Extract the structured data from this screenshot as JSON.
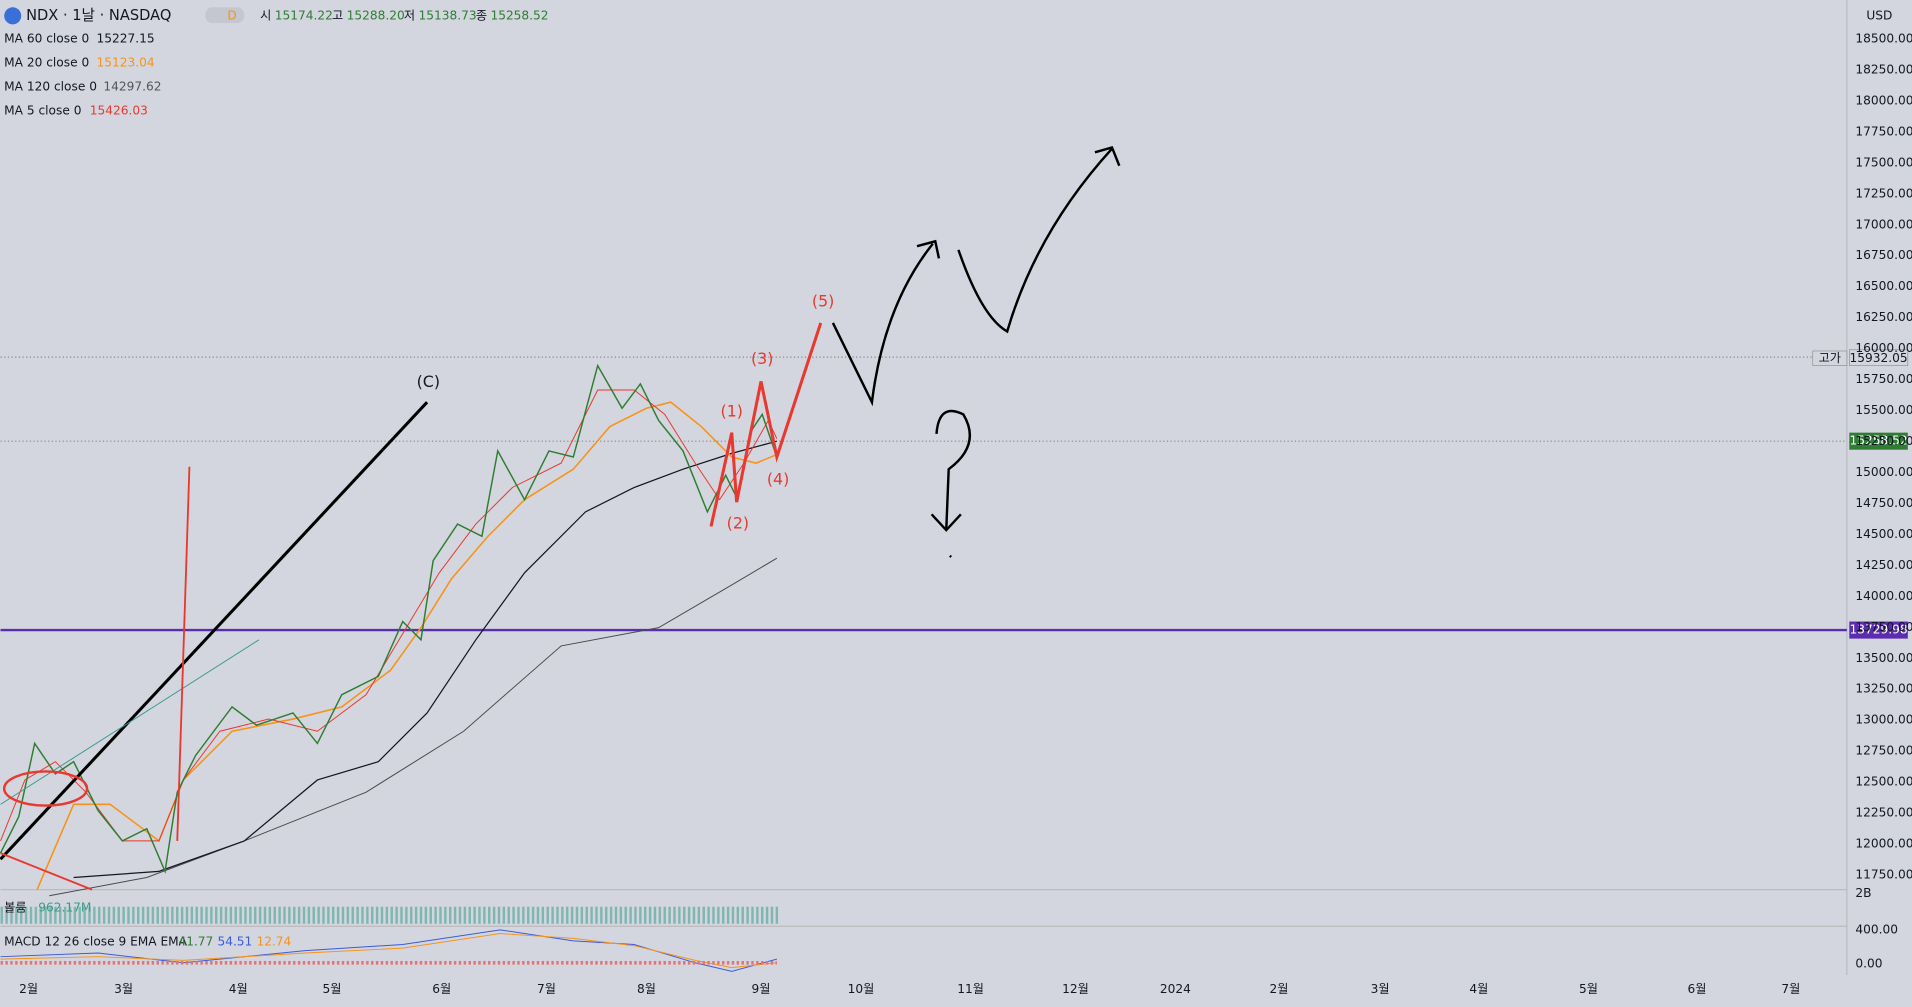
{
  "header": {
    "symbol": "NDX · 1날 · NASDAQ",
    "interval_badge": "D",
    "ohlc": [
      {
        "label": "시",
        "value": "15174.22"
      },
      {
        "label": "고",
        "value": "15288.20"
      },
      {
        "label": "저",
        "value": "15138.73"
      },
      {
        "label": "종",
        "value": "15258.52"
      }
    ],
    "currency": "USD"
  },
  "indicators": [
    {
      "name": "MA 60 close 0",
      "value": "15227.15",
      "color": "#131722"
    },
    {
      "name": "MA 20 close 0",
      "value": "15123.04",
      "color": "#f7931a"
    },
    {
      "name": "MA 120 close 0",
      "value": "14297.62",
      "color": "#555"
    },
    {
      "name": "MA 5 close 0",
      "value": "15426.03",
      "color": "#e8382f"
    }
  ],
  "price_axis": [
    "18500.00",
    "18250.00",
    "18000.00",
    "17750.00",
    "17500.00",
    "17250.00",
    "17000.00",
    "16750.00",
    "16500.00",
    "16250.00",
    "16000.00",
    "15750.00",
    "15500.00",
    "15250.00",
    "15000.00",
    "14750.00",
    "14500.00",
    "14250.00",
    "14000.00",
    "13750.00",
    "13500.00",
    "13250.00",
    "13000.00",
    "12750.00",
    "12500.00",
    "12250.00",
    "12000.00",
    "11750.00"
  ],
  "price_tags": {
    "high_label": "고가",
    "high": "15932.05",
    "last": "15258.52",
    "level": "13729.98"
  },
  "time_axis": [
    "2월",
    "3월",
    "4월",
    "5월",
    "6월",
    "7월",
    "8월",
    "9월",
    "10월",
    "11월",
    "12월",
    "2024",
    "2월",
    "3월",
    "4월",
    "5월",
    "6월",
    "7월"
  ],
  "waves": [
    "(C)",
    "(1)",
    "(2)",
    "(3)",
    "(4)",
    "(5)"
  ],
  "volume": {
    "label": "볼륨",
    "value": "962.17M",
    "axis": "2B"
  },
  "macd": {
    "label": "MACD 12 26 close 9 EMA EMA",
    "values": [
      "41.77",
      "54.51",
      "12.74"
    ],
    "axis": [
      "400.00",
      "0.00"
    ]
  }
}
